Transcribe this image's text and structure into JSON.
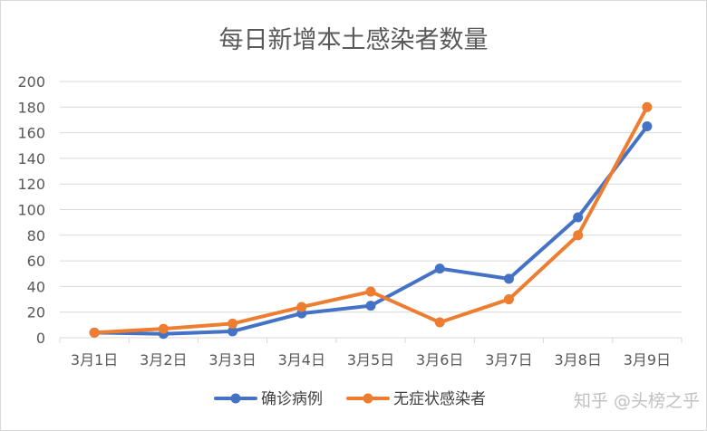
{
  "chart_data": {
    "type": "line",
    "title": "每日新增本土感染者数量",
    "categories": [
      "3月1日",
      "3月2日",
      "3月3日",
      "3月4日",
      "3月5日",
      "3月6日",
      "3月7日",
      "3月8日",
      "3月9日"
    ],
    "series": [
      {
        "name": "确诊病例",
        "color": "#4472C4",
        "values": [
          4,
          3,
          5,
          19,
          25,
          54,
          46,
          94,
          165
        ]
      },
      {
        "name": "无症状感染者",
        "color": "#ED7D31",
        "values": [
          4,
          7,
          11,
          24,
          36,
          12,
          30,
          80,
          180
        ]
      }
    ],
    "ylim": [
      0,
      200
    ],
    "yticks": [
      0,
      20,
      40,
      60,
      80,
      100,
      120,
      140,
      160,
      180,
      200
    ],
    "grid": true,
    "legend_position": "bottom"
  },
  "watermark": "知乎 @头榜之乎"
}
